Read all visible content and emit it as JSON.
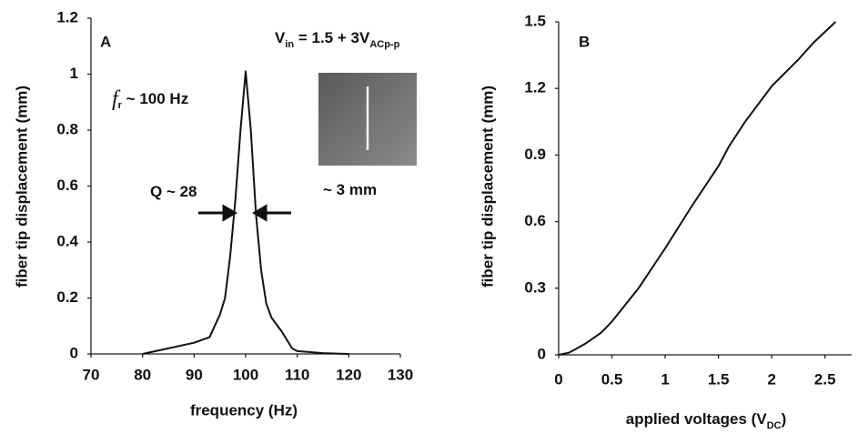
{
  "chart_data": [
    {
      "type": "line",
      "panel_label": "A",
      "xlabel": "frequency (Hz)",
      "ylabel": "fiber tip displacement (mm)",
      "annotations": [
        [
          "V",
          "in",
          " = 1.5 + 3V",
          "ACp-p"
        ],
        [
          "f",
          "r",
          " ~ 100 Hz"
        ],
        [
          "Q ~ 28"
        ],
        [
          "~ 3 mm"
        ]
      ],
      "x": [
        80,
        85,
        90,
        93,
        95,
        96,
        97,
        98,
        99,
        100,
        101,
        102,
        103,
        104,
        105,
        107,
        108,
        109,
        110,
        115,
        120
      ],
      "series": [
        {
          "color": "#111111",
          "values": [
            0,
            0.02,
            0.04,
            0.06,
            0.14,
            0.2,
            0.35,
            0.55,
            0.8,
            1.01,
            0.8,
            0.5,
            0.3,
            0.18,
            0.13,
            0.08,
            0.05,
            0.02,
            0.01,
            0.003,
            0
          ]
        }
      ],
      "xlim": [
        70,
        130
      ],
      "xticks": [
        70,
        80,
        90,
        100,
        110,
        120,
        130
      ],
      "ylim": [
        0,
        1.2
      ],
      "yticks": [
        0,
        0.2,
        0.4,
        0.6,
        0.8,
        1,
        1.2
      ],
      "grid": false
    },
    {
      "type": "line",
      "panel_label": "B",
      "xlabel": [
        "applied voltages (V",
        "DC",
        ")"
      ],
      "ylabel": "fiber tip displacement (mm)",
      "x": [
        0,
        0.1,
        0.25,
        0.4,
        0.5,
        0.6,
        0.75,
        1,
        1.25,
        1.5,
        1.6,
        1.75,
        2,
        2.25,
        2.4,
        2.6
      ],
      "series": [
        {
          "color": "#111111",
          "values": [
            0,
            0.01,
            0.05,
            0.1,
            0.15,
            0.21,
            0.3,
            0.48,
            0.67,
            0.85,
            0.94,
            1.05,
            1.21,
            1.33,
            1.41,
            1.5
          ]
        }
      ],
      "xlim": [
        0,
        2.75
      ],
      "xticks": [
        0,
        0.5,
        1,
        1.5,
        2,
        2.5
      ],
      "ylim": [
        0,
        1.5
      ],
      "yticks": [
        0,
        0.3,
        0.6,
        0.9,
        1.2,
        1.5
      ],
      "grid": false
    }
  ]
}
